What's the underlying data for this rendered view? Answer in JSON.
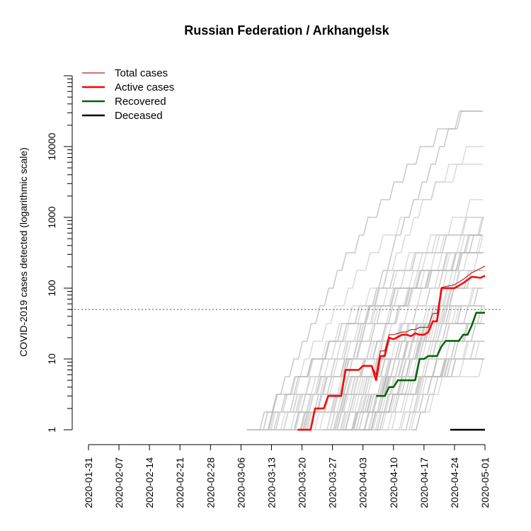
{
  "chart_data": {
    "type": "line",
    "title": "Russian Federation / Arkhangelsk",
    "xlabel": "",
    "ylabel": "COVID-2019 cases detected (logarithmic scale)",
    "yscale": "log",
    "ylim": [
      1,
      100000
    ],
    "threshold": 50,
    "x_range": [
      "2020-01-31",
      "2020-05-01"
    ],
    "x_ticks": [
      "2020-01-31",
      "2020-02-07",
      "2020-02-14",
      "2020-02-21",
      "2020-02-28",
      "2020-03-06",
      "2020-03-13",
      "2020-03-20",
      "2020-03-27",
      "2020-04-03",
      "2020-04-10",
      "2020-04-17",
      "2020-04-24",
      "2020-05-01"
    ],
    "y_ticks": [
      {
        "value": 1,
        "label": "1"
      },
      {
        "value": 10,
        "label": "10"
      },
      {
        "value": 100,
        "label": "100"
      },
      {
        "value": 1000,
        "label": "1000"
      },
      {
        "value": 10000,
        "label": "10000"
      }
    ],
    "legend": [
      {
        "label": "Total cases",
        "color": "#a52a2a"
      },
      {
        "label": "Active cases",
        "color": "#ff0000"
      },
      {
        "label": "Recovered",
        "color": "#006400"
      },
      {
        "label": "Deceased",
        "color": "#000000"
      }
    ],
    "series": [
      {
        "name": "Total cases",
        "color": "#a52a2a",
        "x": [
          "2020-03-19",
          "2020-03-22",
          "2020-03-23",
          "2020-03-25",
          "2020-03-26",
          "2020-03-29",
          "2020-03-30",
          "2020-04-02",
          "2020-04-03",
          "2020-04-05",
          "2020-04-06",
          "2020-04-07",
          "2020-04-08",
          "2020-04-09",
          "2020-04-10",
          "2020-04-12",
          "2020-04-13",
          "2020-04-14",
          "2020-04-15",
          "2020-04-16",
          "2020-04-17",
          "2020-04-18",
          "2020-04-19",
          "2020-04-20",
          "2020-04-21",
          "2020-04-24",
          "2020-04-26",
          "2020-04-28",
          "2020-04-30",
          "2020-05-01"
        ],
        "values": [
          1,
          1,
          2,
          2,
          3,
          3,
          7,
          7,
          8,
          8,
          6,
          13,
          13,
          22,
          22,
          24,
          24,
          26,
          26,
          28,
          28,
          28,
          44,
          44,
          102,
          112,
          133,
          165,
          190,
          205
        ]
      },
      {
        "name": "Active cases",
        "color": "#ff0000",
        "x": [
          "2020-03-19",
          "2020-03-22",
          "2020-03-23",
          "2020-03-25",
          "2020-03-26",
          "2020-03-29",
          "2020-03-30",
          "2020-04-02",
          "2020-04-03",
          "2020-04-05",
          "2020-04-06",
          "2020-04-07",
          "2020-04-08",
          "2020-04-09",
          "2020-04-10",
          "2020-04-12",
          "2020-04-13",
          "2020-04-14",
          "2020-04-15",
          "2020-04-16",
          "2020-04-17",
          "2020-04-18",
          "2020-04-19",
          "2020-04-20",
          "2020-04-21",
          "2020-04-24",
          "2020-04-26",
          "2020-04-28",
          "2020-04-30",
          "2020-05-01"
        ],
        "values": [
          1,
          1,
          2,
          2,
          3,
          3,
          7,
          7,
          8,
          8,
          5,
          11,
          11,
          20,
          19,
          22,
          22,
          21,
          23,
          22,
          22,
          24,
          34,
          34,
          100,
          100,
          118,
          145,
          140,
          150
        ]
      },
      {
        "name": "Recovered",
        "color": "#006400",
        "x": [
          "2020-04-06",
          "2020-04-08",
          "2020-04-09",
          "2020-04-10",
          "2020-04-11",
          "2020-04-13",
          "2020-04-14",
          "2020-04-15",
          "2020-04-16",
          "2020-04-17",
          "2020-04-18",
          "2020-04-20",
          "2020-04-21",
          "2020-04-22",
          "2020-04-23",
          "2020-04-25",
          "2020-04-26",
          "2020-04-27",
          "2020-04-28",
          "2020-04-29",
          "2020-04-30",
          "2020-05-01"
        ],
        "values": [
          3,
          3,
          4,
          4,
          5,
          5,
          5,
          5,
          10,
          10,
          11,
          11,
          15,
          18,
          18,
          18,
          22,
          22,
          30,
          45,
          45,
          45
        ]
      },
      {
        "name": "Deceased",
        "color": "#000000",
        "x": [
          "2020-04-23",
          "2020-05-01"
        ],
        "values": [
          1,
          1
        ]
      }
    ]
  }
}
